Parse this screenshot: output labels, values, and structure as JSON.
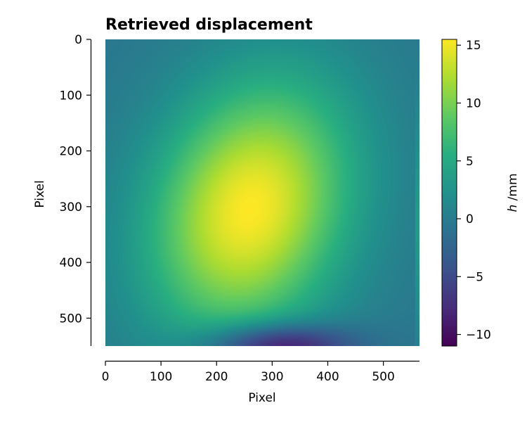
{
  "chart_data": {
    "type": "heatmap",
    "title": "Retrieved displacement",
    "xlabel": "Pixel",
    "ylabel": "Pixel",
    "xlim": [
      0,
      565
    ],
    "ylim": [
      0,
      550
    ],
    "y_inverted": true,
    "x_ticks": [
      "0",
      "100",
      "200",
      "300",
      "400",
      "500"
    ],
    "y_ticks": [
      "0",
      "100",
      "200",
      "300",
      "400",
      "500"
    ],
    "colormap": "viridis",
    "colorbar": {
      "label_italic": "h",
      "label_unit": " /mm",
      "range": [
        -11,
        15.5
      ],
      "ticks": [
        "15",
        "10",
        "5",
        "0",
        "−5",
        "−10"
      ],
      "tick_values": [
        15,
        10,
        5,
        0,
        -5,
        -10
      ]
    },
    "field_features": {
      "peak": {
        "x": 260,
        "y": 305,
        "value": 15.5
      },
      "trough": {
        "x": 310,
        "y": 550,
        "value": -11
      },
      "background_level": -0.5
    }
  }
}
